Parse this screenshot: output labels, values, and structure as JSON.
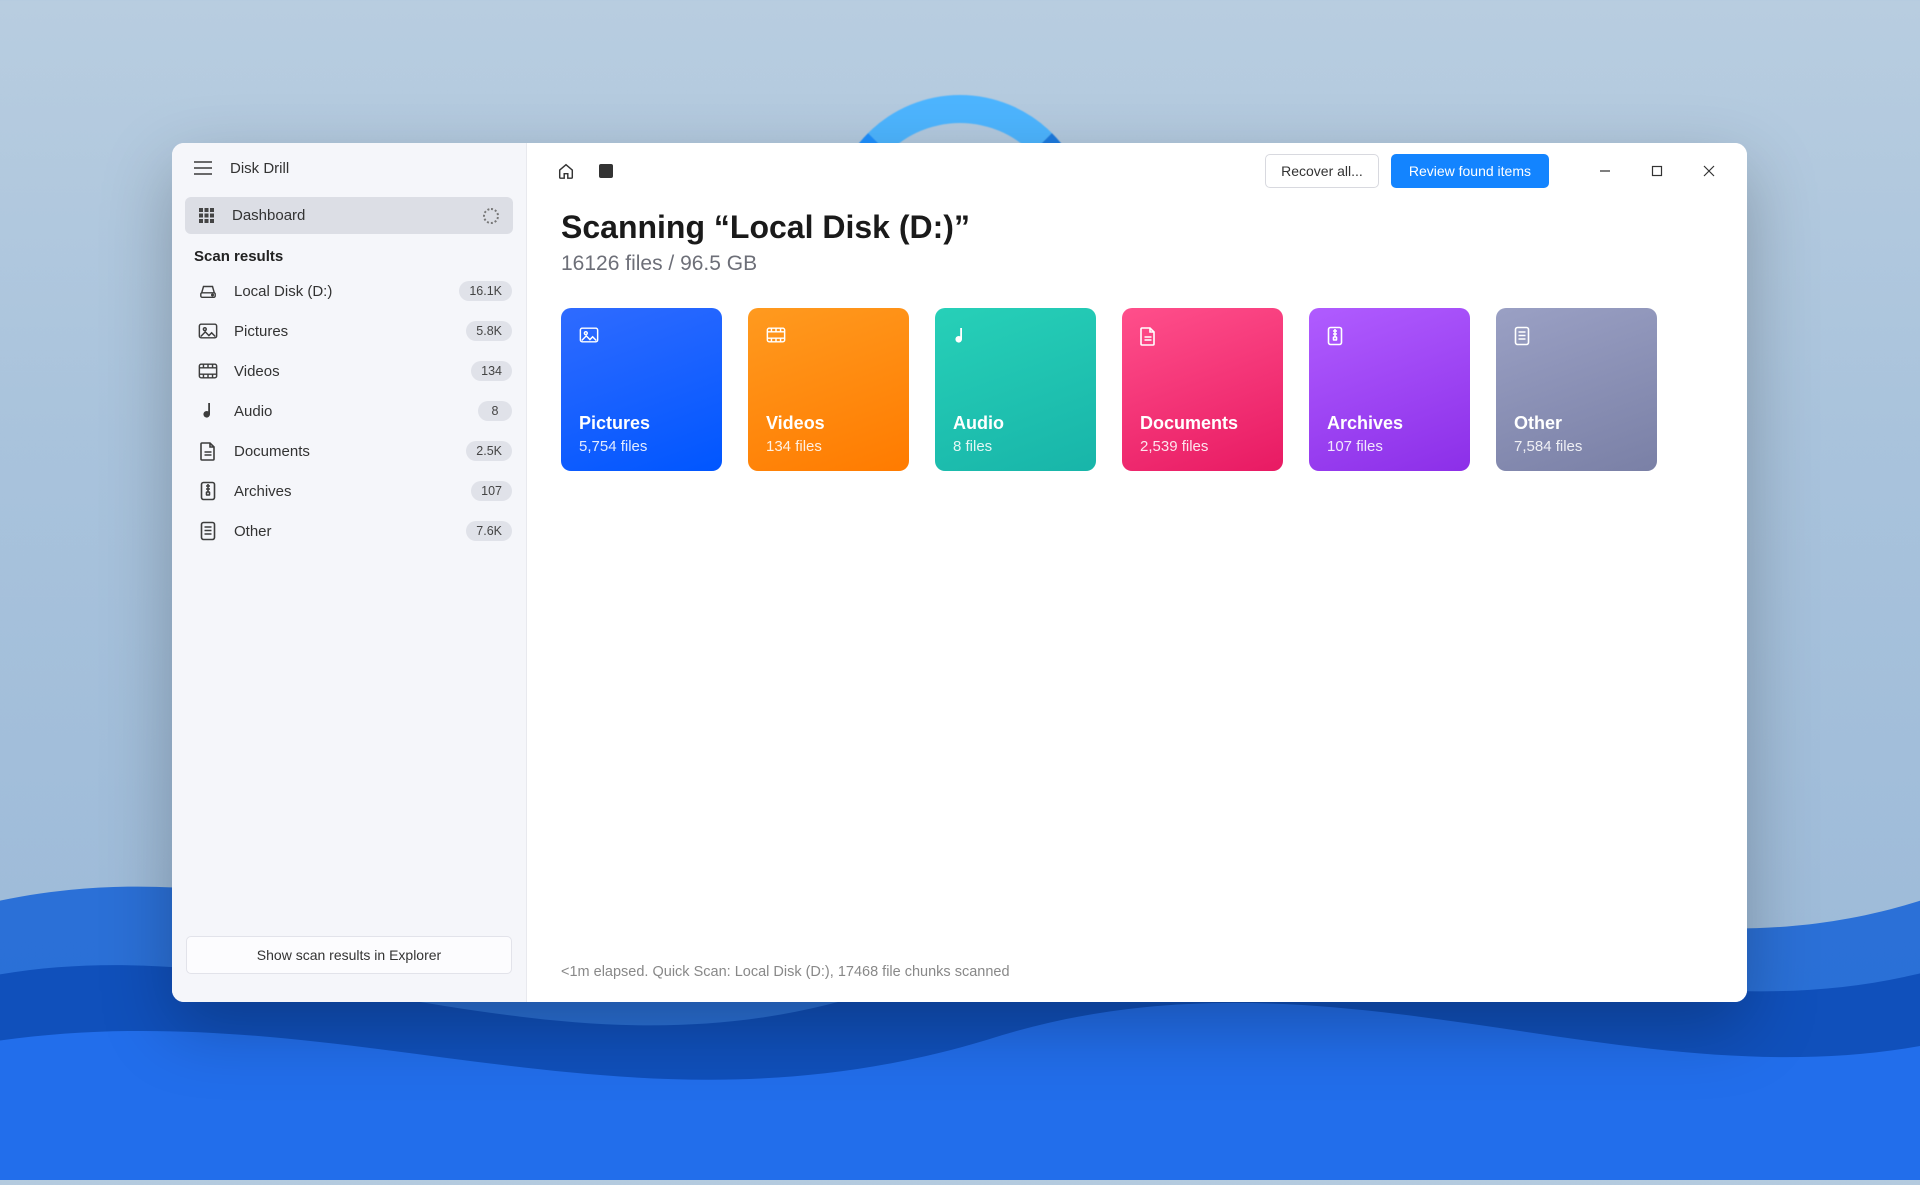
{
  "app": {
    "title": "Disk Drill"
  },
  "sidebar": {
    "dashboard_label": "Dashboard",
    "section_label": "Scan results",
    "items": [
      {
        "label": "Local Disk (D:)",
        "badge": "16.1K",
        "icon": "disk"
      },
      {
        "label": "Pictures",
        "badge": "5.8K",
        "icon": "image"
      },
      {
        "label": "Videos",
        "badge": "134",
        "icon": "video"
      },
      {
        "label": "Audio",
        "badge": "8",
        "icon": "audio"
      },
      {
        "label": "Documents",
        "badge": "2.5K",
        "icon": "doc"
      },
      {
        "label": "Archives",
        "badge": "107",
        "icon": "archive"
      },
      {
        "label": "Other",
        "badge": "7.6K",
        "icon": "other"
      }
    ],
    "footer_button": "Show scan results in Explorer"
  },
  "toolbar": {
    "recover_label": "Recover all...",
    "review_label": "Review found items"
  },
  "main": {
    "title": "Scanning “Local Disk (D:)”",
    "subtitle": "16126 files / 96.5 GB"
  },
  "cards": [
    {
      "title": "Pictures",
      "count": "5,754 files",
      "icon": "image",
      "gradient": [
        "#2f6bff",
        "#0056ff"
      ]
    },
    {
      "title": "Videos",
      "count": "134 files",
      "icon": "video",
      "gradient": [
        "#ff9a1f",
        "#ff7b00"
      ]
    },
    {
      "title": "Audio",
      "count": "8 files",
      "icon": "audio",
      "gradient": [
        "#27d0b8",
        "#18b5a9"
      ]
    },
    {
      "title": "Documents",
      "count": "2,539 files",
      "icon": "doc",
      "gradient": [
        "#ff4f8b",
        "#e81a63"
      ]
    },
    {
      "title": "Archives",
      "count": "107 files",
      "icon": "archive",
      "gradient": [
        "#b05cff",
        "#8c2fe8"
      ]
    },
    {
      "title": "Other",
      "count": "7,584 files",
      "icon": "other",
      "gradient": [
        "#9aa0c4",
        "#7a80a6"
      ]
    }
  ],
  "status": "<1m elapsed. Quick Scan: Local Disk (D:), 17468 file chunks scanned"
}
